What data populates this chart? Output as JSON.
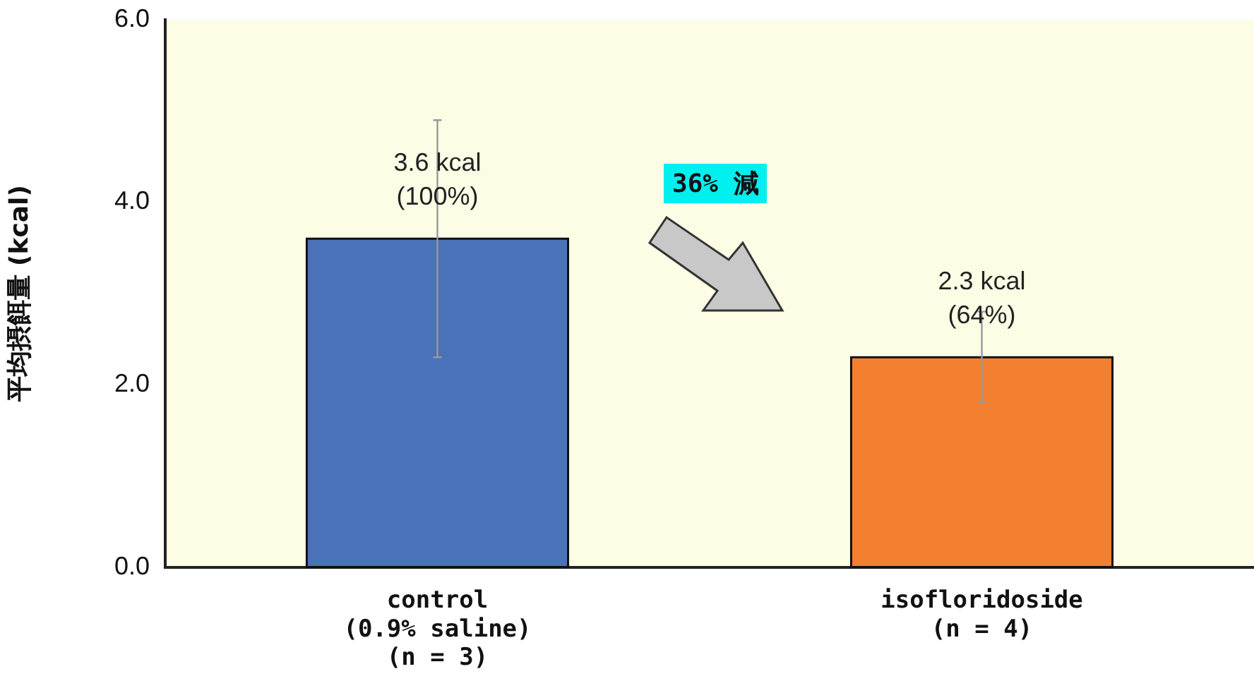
{
  "chart_data": {
    "type": "bar",
    "ylabel": "平均摂餌量 (kcal)",
    "categories": [
      "control\n(0.9% saline)\n(n = 3)",
      "isofloridoside\n(n = 4)"
    ],
    "values": [
      3.6,
      2.3
    ],
    "colors": [
      "#4a72b8",
      "#f28030"
    ],
    "errors": [
      [
        2.3,
        4.9
      ],
      [
        1.8,
        2.8
      ]
    ],
    "value_labels": [
      "3.6 kcal\n(100%)",
      "2.3 kcal\n(64%)"
    ],
    "annotations": [
      "36% 減"
    ],
    "ylim": [
      0,
      6
    ],
    "yticks": [
      {
        "value": 0,
        "label": "0.0"
      },
      {
        "value": 2,
        "label": "2.0"
      },
      {
        "value": 4,
        "label": "4.0"
      },
      {
        "value": 6,
        "label": "6.0"
      }
    ],
    "grid": false,
    "legend": false
  }
}
